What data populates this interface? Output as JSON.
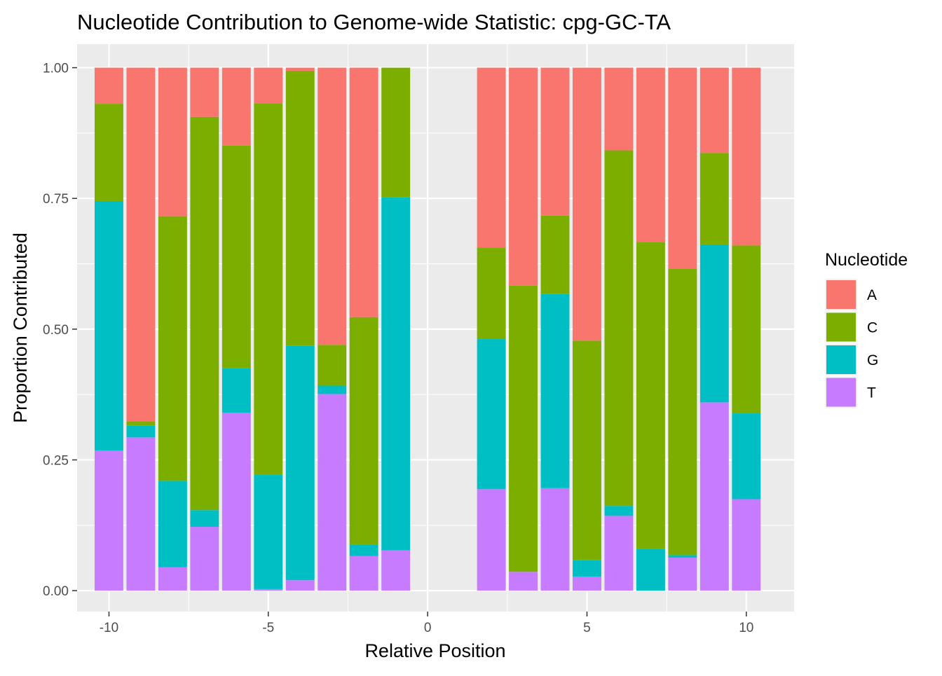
{
  "chart_data": {
    "type": "bar",
    "stacked": true,
    "title": "Nucleotide Contribution to Genome-wide Statistic: cpg-GC-TA",
    "xlabel": "Relative Position",
    "ylabel": "Proportion Contributed",
    "xlim": [
      -11,
      11.5
    ],
    "ylim": [
      -0.04,
      1.045
    ],
    "x_ticks": [
      -10,
      -5,
      0,
      5,
      10
    ],
    "x_tick_labels": [
      "-10",
      "-5",
      "0",
      "5",
      "10"
    ],
    "y_ticks": [
      0,
      0.25,
      0.5,
      0.75,
      1.0
    ],
    "y_tick_labels": [
      "0.00",
      "0.25",
      "0.50",
      "0.75",
      "1.00"
    ],
    "grid": true,
    "legend_position": "right",
    "legend_title": "Nucleotide",
    "x": [
      -10,
      -9,
      -8,
      -7,
      -6,
      -5,
      -4,
      -3,
      -2,
      -1,
      2,
      3,
      4,
      5,
      6,
      7,
      8,
      9,
      10
    ],
    "series": [
      {
        "name": "T",
        "color": "#C77CFF",
        "values": [
          0.268,
          0.293,
          0.045,
          0.122,
          0.34,
          0.003,
          0.02,
          0.376,
          0.066,
          0.077,
          0.194,
          0.036,
          0.196,
          0.027,
          0.143,
          0.0,
          0.063,
          0.36,
          0.175
        ]
      },
      {
        "name": "G",
        "color": "#00BFC4",
        "values": [
          0.477,
          0.023,
          0.165,
          0.032,
          0.085,
          0.219,
          0.448,
          0.016,
          0.022,
          0.675,
          0.287,
          0.0,
          0.371,
          0.031,
          0.019,
          0.08,
          0.005,
          0.302,
          0.164
        ]
      },
      {
        "name": "C",
        "color": "#7CAE00",
        "values": [
          0.186,
          0.007,
          0.506,
          0.752,
          0.426,
          0.71,
          0.526,
          0.078,
          0.435,
          0.248,
          0.175,
          0.547,
          0.15,
          0.42,
          0.68,
          0.587,
          0.547,
          0.175,
          0.321
        ]
      },
      {
        "name": "A",
        "color": "#F8766D",
        "values": [
          0.069,
          0.677,
          0.284,
          0.094,
          0.149,
          0.068,
          0.006,
          0.53,
          0.477,
          0.0,
          0.344,
          0.417,
          0.283,
          0.522,
          0.158,
          0.333,
          0.385,
          0.163,
          0.34
        ]
      }
    ],
    "legend_order": [
      "A",
      "C",
      "G",
      "T"
    ],
    "panel_background": "#EBEBEB",
    "grid_color": "#FFFFFF"
  }
}
